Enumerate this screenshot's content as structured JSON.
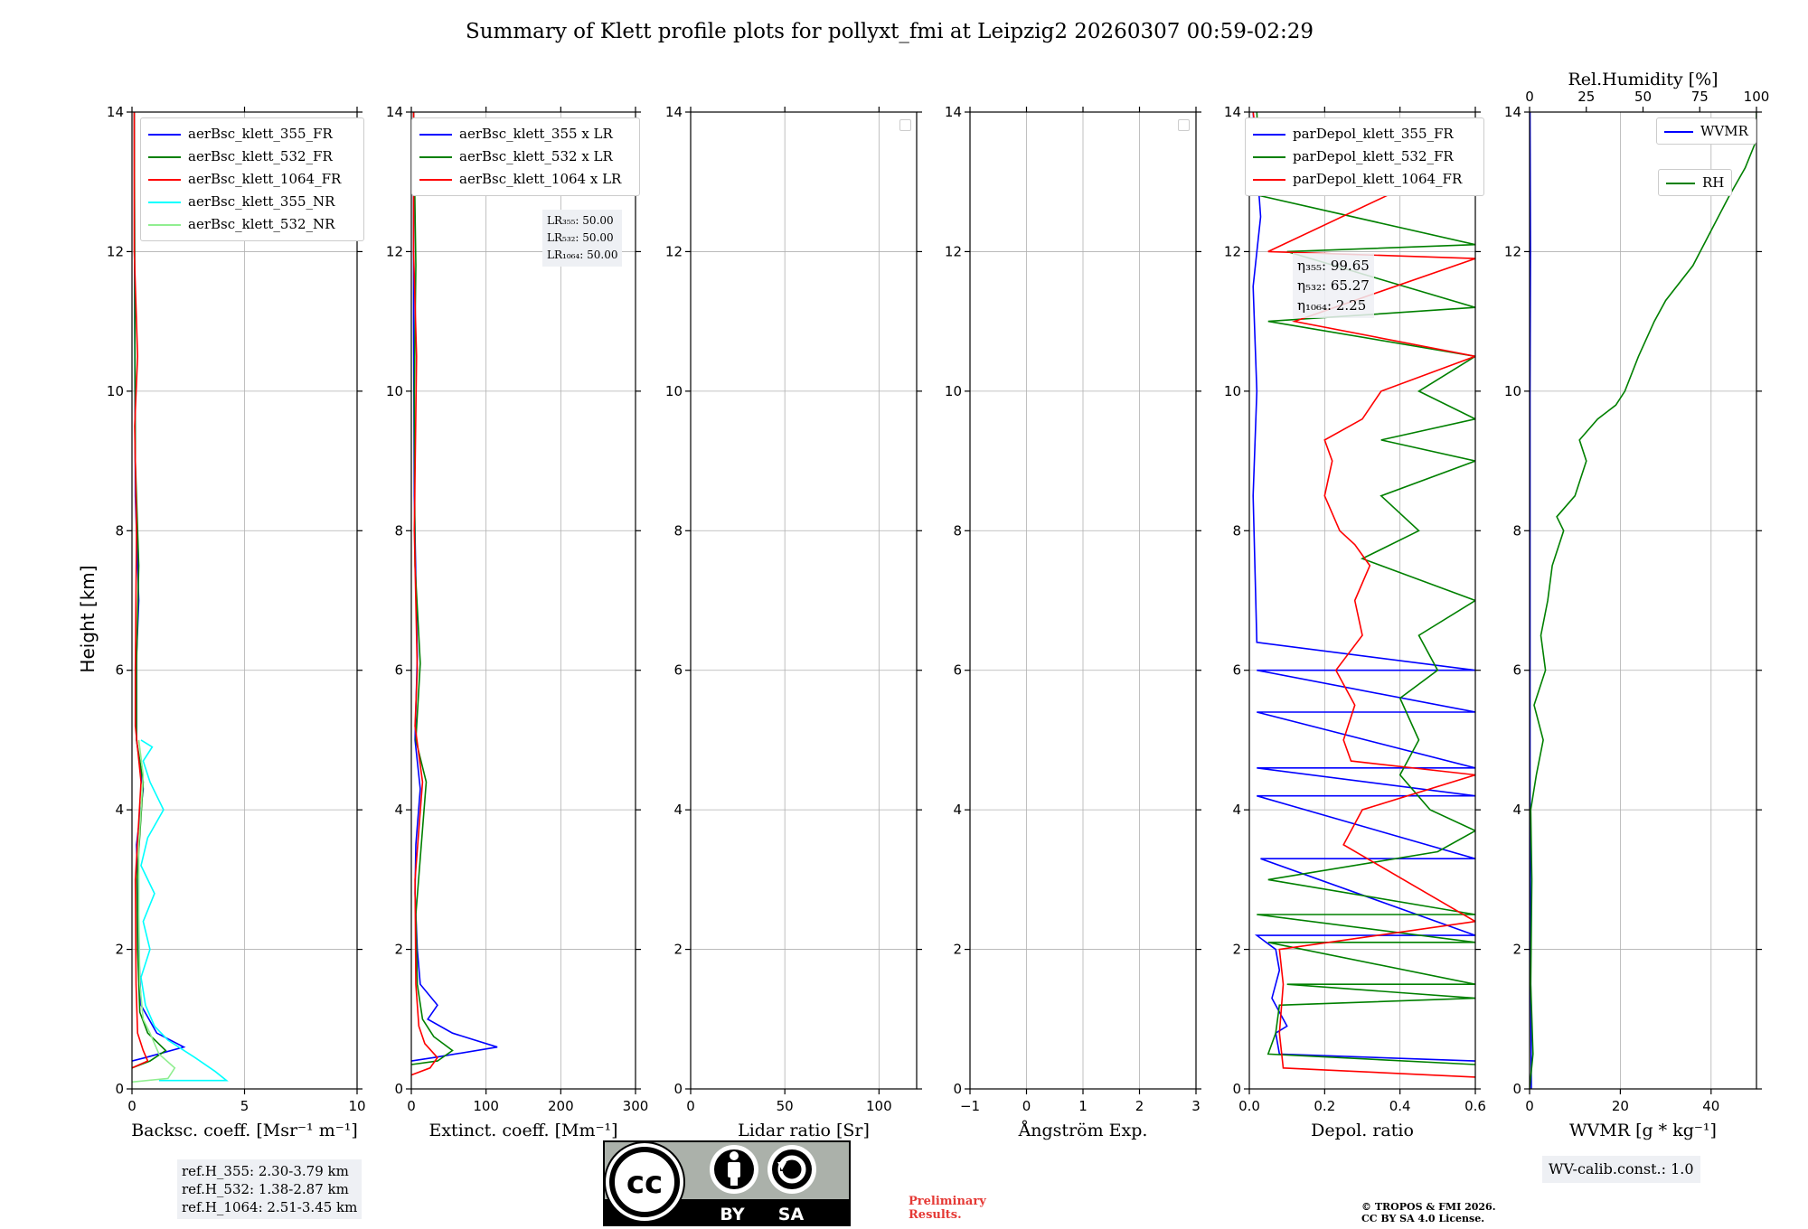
{
  "title": "Summary of Klett profile plots for pollyxt_fmi at Leipzig2 20260307 00:59-02:29",
  "ylabel": "Height [km]",
  "colors": {
    "c355": "#0000ff",
    "c532": "#008000",
    "c1064": "#ff0000",
    "nr355": "#00ffff",
    "nr532": "#90ee90"
  },
  "chart_data": [
    {
      "id": "backscatter",
      "type": "line",
      "xlabel": "Backsc. coeff. [Msr⁻¹ m⁻¹]",
      "xlim": [
        0,
        10
      ],
      "ylim": [
        0,
        14
      ],
      "xticks": [
        "0",
        "5",
        "10"
      ],
      "yticks": [
        "0",
        "2",
        "4",
        "6",
        "8",
        "10",
        "12",
        "14"
      ],
      "legend_position": "top-right",
      "series": [
        {
          "name": "aerBsc_klett_355_FR",
          "color": "#0000ff",
          "x": [
            0,
            0.6,
            2.3,
            1.1,
            0.4,
            0.3,
            0.25,
            0.2,
            0.5,
            0.2,
            0.2,
            0.3,
            0.15,
            0.12,
            0.1
          ],
          "y": [
            0.4,
            0.45,
            0.6,
            0.8,
            1.2,
            2.0,
            2.8,
            3.5,
            4.3,
            5.0,
            6.2,
            7.0,
            8.5,
            11.0,
            14.0
          ]
        },
        {
          "name": "aerBsc_klett_532_FR",
          "color": "#008000",
          "x": [
            0,
            0.8,
            1.5,
            0.7,
            0.35,
            0.25,
            0.22,
            0.5,
            0.2,
            0.2,
            0.3,
            0.15,
            0.12,
            0.1
          ],
          "y": [
            0.3,
            0.4,
            0.55,
            0.8,
            1.1,
            2.0,
            3.0,
            4.4,
            5.0,
            6.1,
            7.5,
            9.0,
            11.8,
            14.0
          ]
        },
        {
          "name": "aerBsc_klett_1064_FR",
          "color": "#ff0000",
          "x": [
            0,
            0.7,
            0.5,
            0.25,
            0.18,
            0.15,
            0.4,
            0.15,
            0.15,
            0.2,
            0.12,
            0.25,
            0.1,
            0.1
          ],
          "y": [
            0.3,
            0.4,
            0.55,
            0.8,
            1.5,
            3.0,
            4.4,
            5.2,
            6.0,
            8.0,
            9.5,
            10.5,
            12.0,
            14.0
          ]
        },
        {
          "name": "aerBsc_klett_355_NR",
          "color": "#00ffff",
          "x": [
            1.2,
            4.2,
            3.7,
            2.8,
            1.6,
            1.0,
            0.6,
            0.4,
            0.8,
            0.5,
            1.0,
            0.4,
            0.7,
            1.4,
            0.8,
            0.5,
            0.9,
            0.4
          ],
          "y": [
            0.12,
            0.12,
            0.25,
            0.45,
            0.7,
            0.9,
            1.2,
            1.6,
            2.0,
            2.4,
            2.8,
            3.2,
            3.6,
            4.0,
            4.4,
            4.7,
            4.9,
            5.0
          ]
        },
        {
          "name": "aerBsc_klett_532_NR",
          "color": "#90ee90",
          "x": [
            0,
            1.6,
            1.9,
            1.2,
            0.8,
            0.5,
            0.35,
            0.3,
            0.3,
            0.5,
            0.3
          ],
          "y": [
            0.1,
            0.15,
            0.3,
            0.5,
            0.8,
            1.0,
            1.5,
            2.5,
            3.5,
            4.5,
            5.0
          ]
        }
      ]
    },
    {
      "id": "extinction",
      "type": "line",
      "xlabel": "Extinct. coeff. [Mm⁻¹]",
      "xlim": [
        0,
        300
      ],
      "ylim": [
        0,
        14
      ],
      "xticks": [
        "0",
        "100",
        "200",
        "300"
      ],
      "yticks": [
        "0",
        "2",
        "4",
        "6",
        "8",
        "10",
        "12",
        "14"
      ],
      "legend_position": "top-right",
      "series": [
        {
          "name": "aerBsc_klett_355 x LR",
          "color": "#0000ff",
          "x": [
            0,
            30,
            115,
            55,
            22,
            35,
            12,
            8,
            5,
            6,
            12,
            5,
            8,
            4,
            3,
            3
          ],
          "y": [
            0.4,
            0.45,
            0.6,
            0.8,
            1.0,
            1.2,
            1.5,
            2.0,
            2.8,
            3.5,
            4.3,
            5.0,
            6.2,
            8.5,
            11.0,
            14.0
          ]
        },
        {
          "name": "aerBsc_klett_532 x LR",
          "color": "#008000",
          "x": [
            0,
            35,
            55,
            30,
            15,
            8,
            6,
            20,
            6,
            12,
            5,
            4,
            6,
            3
          ],
          "y": [
            0.35,
            0.4,
            0.55,
            0.75,
            1.0,
            1.5,
            2.5,
            4.4,
            5.0,
            6.1,
            7.5,
            10.0,
            11.8,
            14.0
          ]
        },
        {
          "name": "aerBsc_klett_1064 x LR",
          "color": "#ff0000",
          "x": [
            0,
            25,
            35,
            18,
            10,
            6,
            5,
            15,
            5,
            8,
            4,
            7,
            3,
            3
          ],
          "y": [
            0.2,
            0.3,
            0.45,
            0.65,
            0.9,
            1.5,
            3.0,
            4.4,
            5.2,
            6.0,
            8.0,
            10.5,
            12.0,
            14.0
          ]
        }
      ]
    },
    {
      "id": "lidar_ratio",
      "type": "line",
      "xlabel": "Lidar ratio [Sr]",
      "xlim": [
        0,
        120
      ],
      "ylim": [
        0,
        14
      ],
      "xticks": [
        "0",
        "50",
        "100"
      ],
      "yticks": [
        "0",
        "2",
        "4",
        "6",
        "8",
        "10",
        "12",
        "14"
      ],
      "legend_position": "top-right",
      "series": []
    },
    {
      "id": "angstrom",
      "type": "line",
      "xlabel": "Ångström Exp.",
      "xlim": [
        -1,
        3
      ],
      "ylim": [
        0,
        14
      ],
      "xticks": [
        "−1",
        "0",
        "1",
        "2",
        "3"
      ],
      "yticks": [
        "0",
        "2",
        "4",
        "6",
        "8",
        "10",
        "12",
        "14"
      ],
      "legend_position": "top-right",
      "series": []
    },
    {
      "id": "depol",
      "type": "line",
      "xlabel": "Depol. ratio",
      "xlim": [
        0,
        0.6
      ],
      "ylim": [
        0,
        14
      ],
      "xticks": [
        "0.0",
        "0.2",
        "0.4",
        "0.6"
      ],
      "yticks": [
        "0",
        "2",
        "4",
        "6",
        "8",
        "10",
        "12",
        "14"
      ],
      "legend_position": "top-left",
      "series": [
        {
          "name": "parDepol_klett_355_FR",
          "color": "#0000ff",
          "x": [
            0.6,
            0.08,
            0.07,
            0.1,
            0.06,
            0.08,
            0.07,
            0.02,
            0.6,
            0.03,
            0.6,
            0.02,
            0.6,
            0.02,
            0.6,
            0.02,
            0.6,
            0.02,
            0.6,
            0.02,
            0.01,
            0.02,
            0.01,
            0.03,
            0.01
          ],
          "y": [
            0.4,
            0.5,
            0.8,
            0.9,
            1.3,
            1.7,
            2.0,
            2.2,
            2.2,
            3.3,
            3.3,
            4.2,
            4.2,
            4.6,
            4.6,
            5.4,
            5.4,
            6.0,
            6.0,
            6.4,
            8.5,
            10.0,
            11.5,
            12.5,
            14.0
          ]
        },
        {
          "name": "parDepol_klett_532_FR",
          "color": "#008000",
          "x": [
            0.6,
            0.05,
            0.07,
            0.08,
            0.6,
            0.1,
            0.6,
            0.05,
            0.6,
            0.02,
            0.6,
            0.05,
            0.5,
            0.6,
            0.48,
            0.4,
            0.45,
            0.4,
            0.5,
            0.45,
            0.6,
            0.3,
            0.45,
            0.35,
            0.6,
            0.35,
            0.6,
            0.45,
            0.6,
            0.05,
            0.6,
            0.1,
            0.6,
            0.03,
            0.02
          ],
          "y": [
            0.35,
            0.5,
            0.8,
            1.2,
            1.3,
            1.5,
            1.5,
            2.1,
            2.1,
            2.5,
            2.5,
            3.0,
            3.4,
            3.7,
            4.0,
            4.5,
            5.0,
            5.6,
            6.0,
            6.5,
            7.0,
            7.6,
            8.0,
            8.5,
            9.0,
            9.3,
            9.6,
            10.0,
            10.5,
            11.0,
            11.2,
            12.0,
            12.1,
            12.8,
            14.0
          ]
        },
        {
          "name": "parDepol_klett_1064_FR",
          "color": "#ff0000",
          "x": [
            0.6,
            0.09,
            0.08,
            0.09,
            0.08,
            0.6,
            0.25,
            0.3,
            0.6,
            0.27,
            0.25,
            0.28,
            0.23,
            0.3,
            0.28,
            0.32,
            0.28,
            0.24,
            0.2,
            0.22,
            0.2,
            0.3,
            0.35,
            0.6,
            0.12,
            0.6,
            0.05,
            0.6,
            0.02,
            0.01
          ],
          "y": [
            0.17,
            0.3,
            0.8,
            1.5,
            2.0,
            2.4,
            3.5,
            4.0,
            4.5,
            4.7,
            5.0,
            5.5,
            6.0,
            6.5,
            7.0,
            7.5,
            7.8,
            8.0,
            8.5,
            9.0,
            9.3,
            9.6,
            10.0,
            10.5,
            11.0,
            11.9,
            12.0,
            13.4,
            13.6,
            14.0
          ]
        }
      ]
    },
    {
      "id": "wv",
      "type": "line",
      "xlabel": "WVMR [g * kg⁻¹]",
      "xlim": [
        0,
        50
      ],
      "ylim": [
        0,
        14
      ],
      "xticks": [
        "0",
        "20",
        "40"
      ],
      "yticks": [
        "0",
        "2",
        "4",
        "6",
        "8",
        "10",
        "12",
        "14"
      ],
      "x2label": "Rel.Humidity [%]",
      "x2lim": [
        0,
        100
      ],
      "x2ticks": [
        "0",
        "25",
        "50",
        "75",
        "100"
      ],
      "legend_position": "top-right",
      "series": [
        {
          "name": "WVMR",
          "axis": "bottom",
          "color": "#0000ff",
          "x": [
            0.4,
            0.3,
            0.2,
            0.1,
            0.1,
            0.1,
            0.1,
            0.2,
            0.1
          ],
          "y": [
            0,
            1.0,
            2.0,
            4.0,
            6.0,
            8.0,
            10.0,
            12.0,
            14.0
          ]
        },
        {
          "name": "RH",
          "axis": "top",
          "color": "#008000",
          "x": [
            0,
            1.5,
            0.5,
            1,
            0.5,
            3,
            6,
            2,
            7,
            5,
            8,
            10,
            15,
            12,
            20,
            25,
            22,
            30,
            38,
            42,
            48,
            55,
            60,
            72,
            80,
            88,
            95,
            100,
            100
          ],
          "y": [
            0,
            0.5,
            1.5,
            3.0,
            4.0,
            4.5,
            5.0,
            5.5,
            6.0,
            6.5,
            7.0,
            7.5,
            8.0,
            8.2,
            8.5,
            9.0,
            9.3,
            9.6,
            9.8,
            10.0,
            10.5,
            11.0,
            11.3,
            11.8,
            12.3,
            12.8,
            13.2,
            13.6,
            14.0
          ]
        }
      ]
    }
  ],
  "annotations": {
    "lr_355": "LR₃₅₅: 50.00",
    "lr_532": "LR₅₃₂: 50.00",
    "lr_1064": "LR₁₀₆₄: 50.00",
    "eta_355": "η₃₅₅: 99.65",
    "eta_532": "η₅₃₂: 65.27",
    "eta_1064": "η₁₀₆₄: 2.25"
  },
  "refbox": {
    "l1": "ref.H_355: 2.30-3.79 km",
    "l2": "ref.H_532: 1.38-2.87 km",
    "l3": "ref.H_1064: 2.51-3.45 km"
  },
  "wv_calib": "WV-calib.const.: 1.0",
  "license": {
    "cc": "cc",
    "by": "BY",
    "sa": "SA"
  },
  "preliminary": {
    "l1": "Preliminary",
    "l2": "Results."
  },
  "copyright": {
    "l1": "© TROPOS & FMI 2026.",
    "l2": "CC BY SA 4.0 License."
  }
}
